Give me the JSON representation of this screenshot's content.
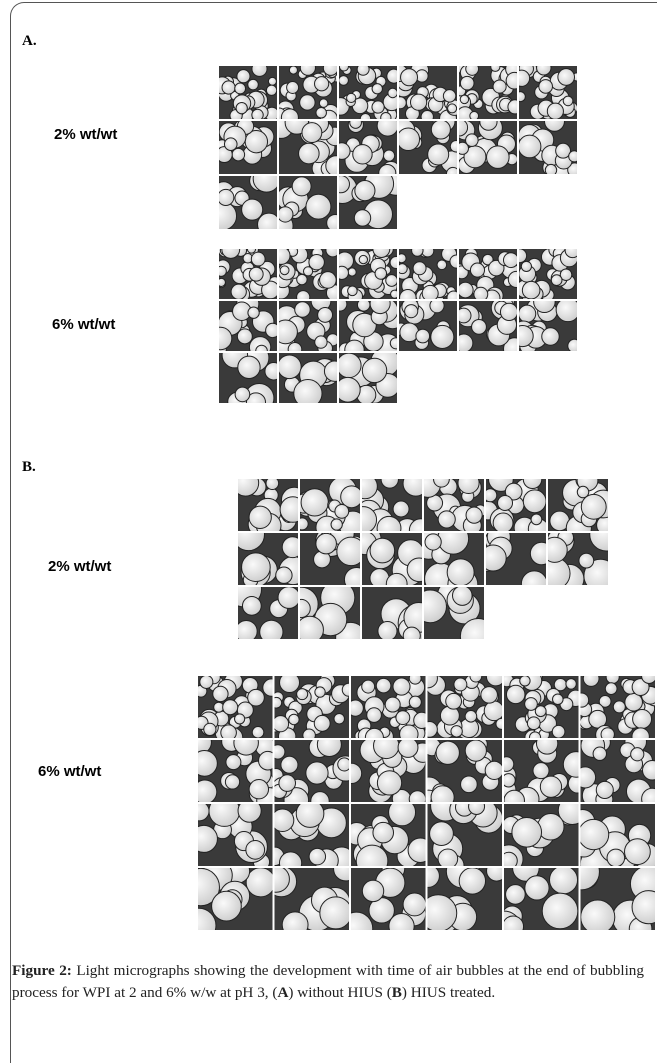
{
  "panels": [
    {
      "label": "A.",
      "groups": [
        {
          "label": "2% wt/wt"
        },
        {
          "label": "6% wt/wt"
        }
      ]
    },
    {
      "label": "B.",
      "groups": [
        {
          "label": "2% wt/wt"
        },
        {
          "label": "6% wt/wt"
        }
      ]
    }
  ],
  "caption": {
    "label": "Figure 2:",
    "parts": [
      " Light micrographs showing the development with time of air bubbles at the end of bubbling process for WPI at 2 and 6% w/w at pH 3, (",
      "A",
      ") without HIUS (",
      "B",
      ") HIUS treated."
    ]
  }
}
